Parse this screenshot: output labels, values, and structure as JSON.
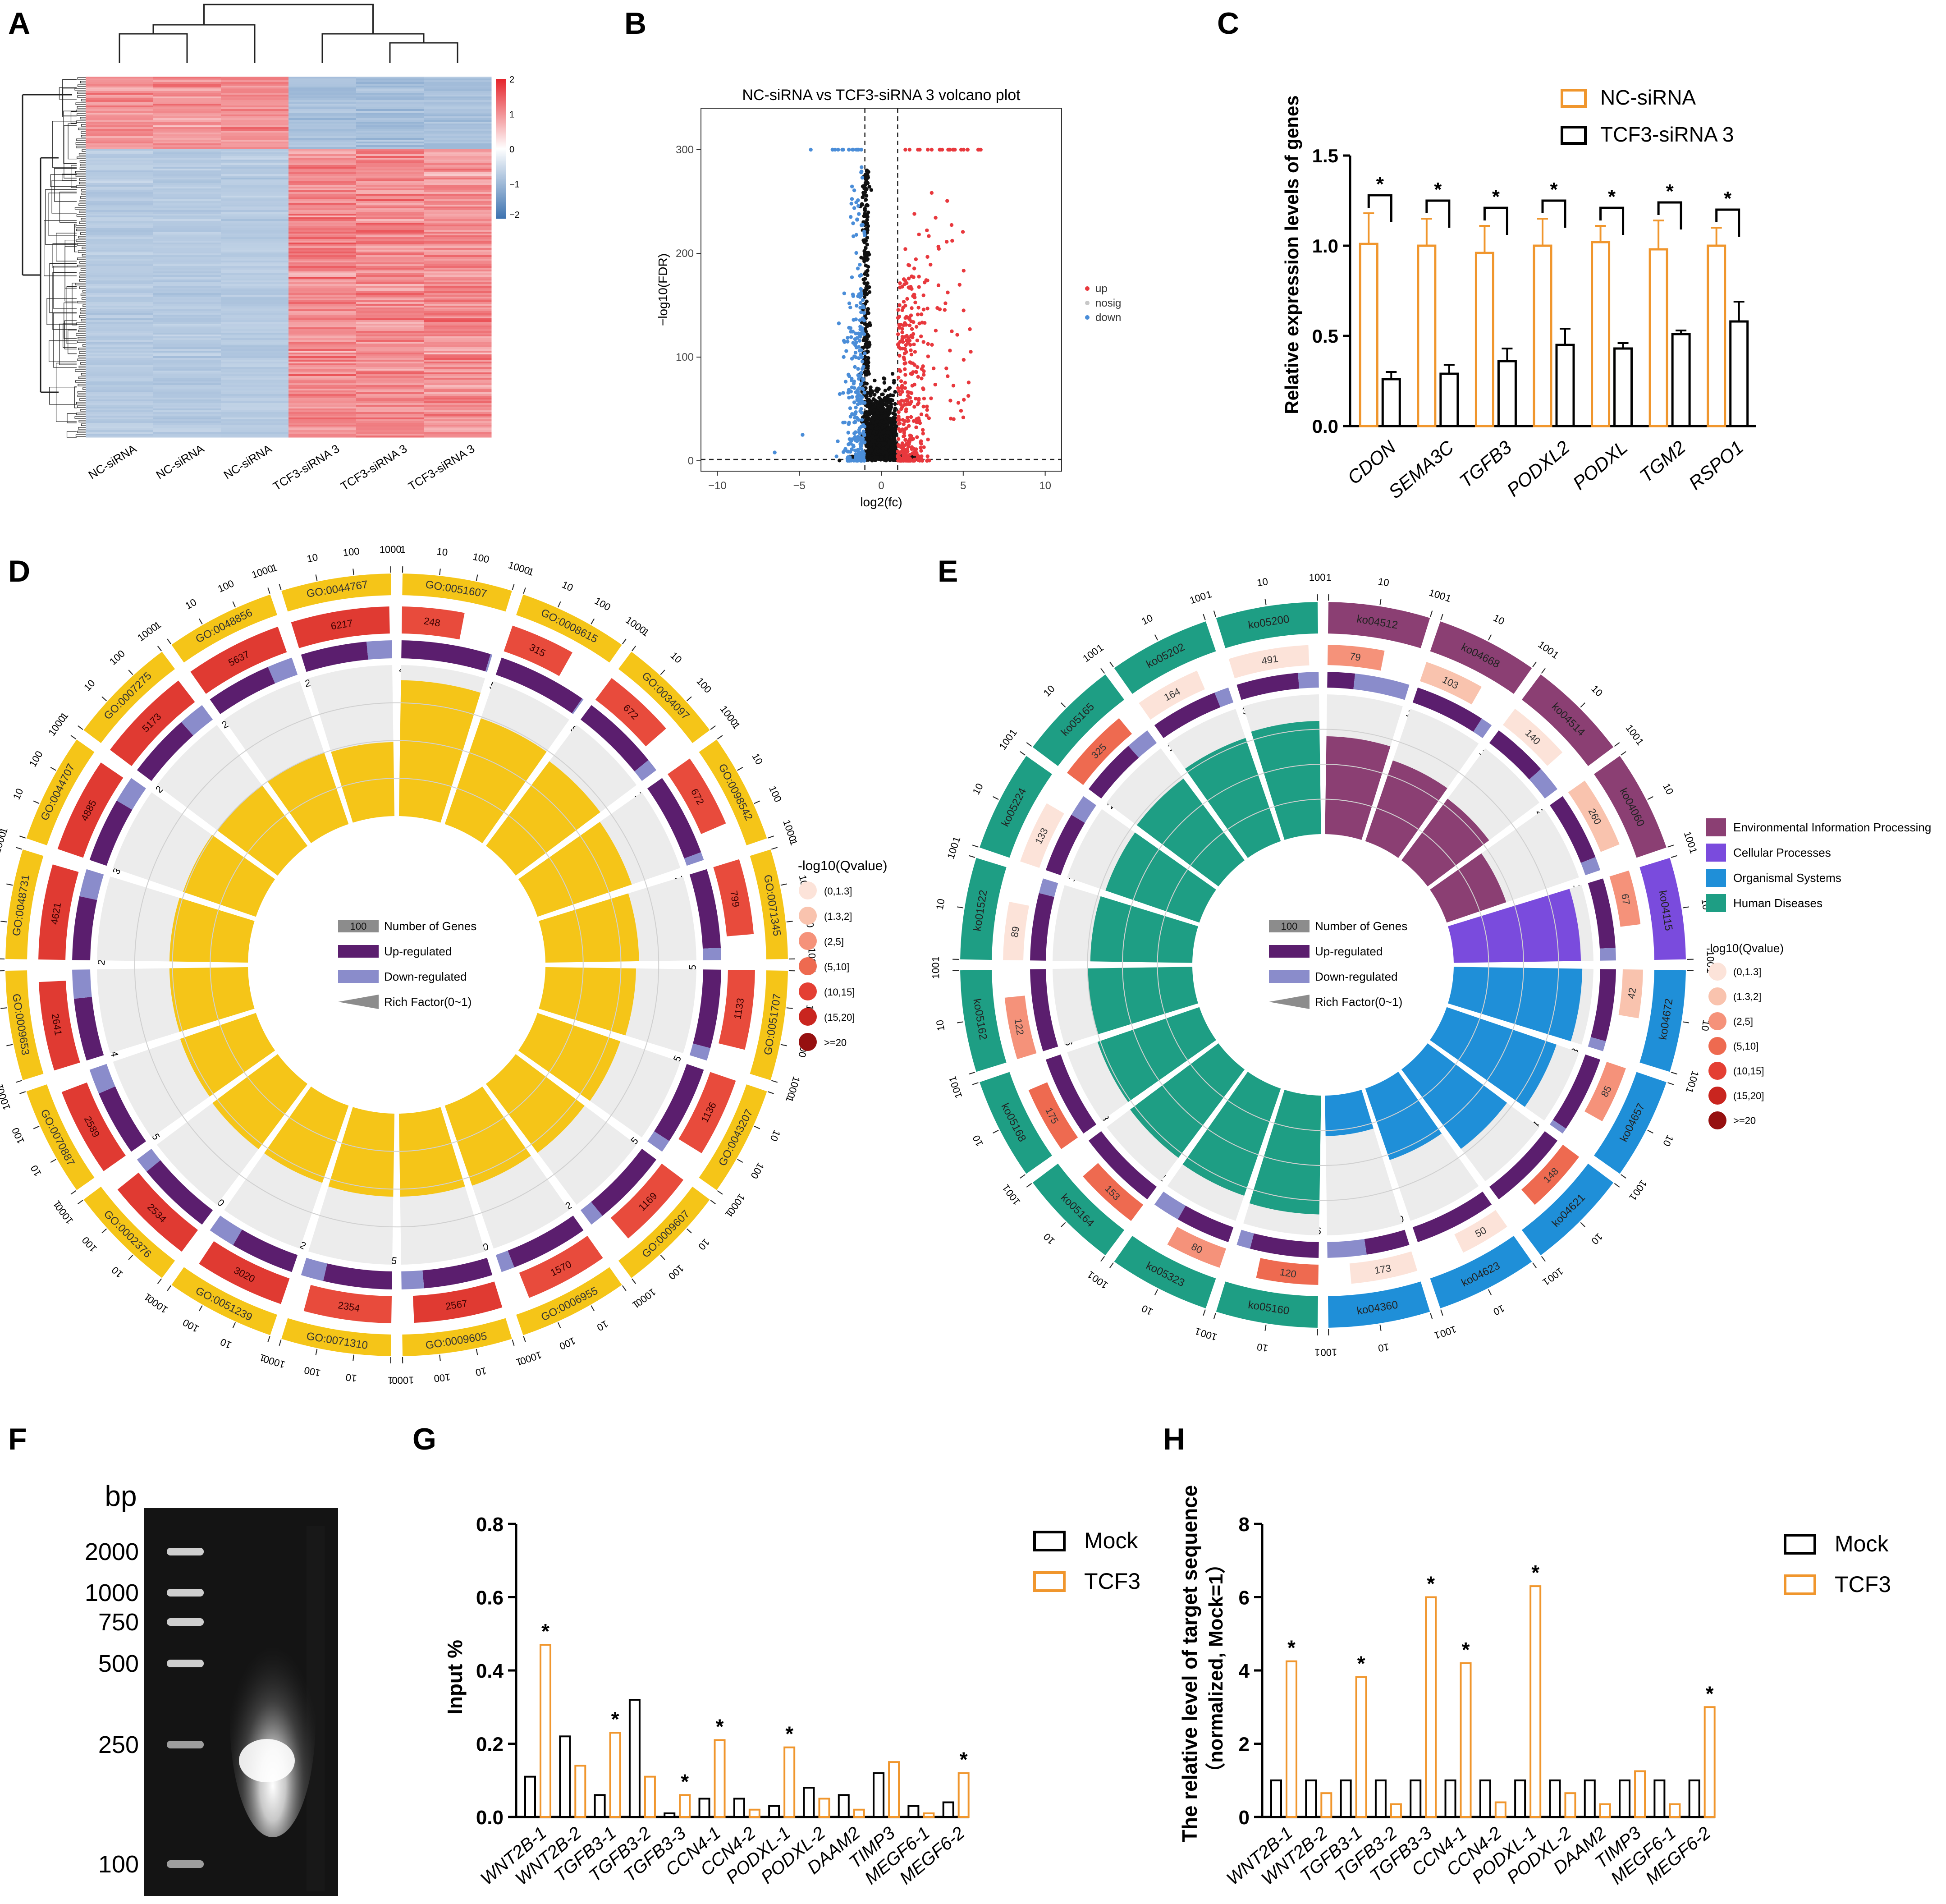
{
  "panel_letters": {
    "a": "A",
    "b": "B",
    "c": "C",
    "d": "D",
    "e": "E",
    "f": "F",
    "g": "G",
    "h": "H"
  },
  "colors": {
    "orange": "#F0962D",
    "red": "#E8383D",
    "blue": "#4A8DD8",
    "gold": "#F5C518",
    "purple": "#5B1E6E",
    "lavender": "#8A8CCB",
    "env": "#8B3F73",
    "cell": "#7A4BDD",
    "org": "#1F8FD8",
    "hum": "#1E9E84"
  },
  "chart_data": [
    {
      "id": "heatmap",
      "type": "heatmap",
      "columns": [
        "NC-siRNA",
        "NC-siRNA",
        "NC-siRNA",
        "TCF3-siRNA 3",
        "TCF3-siRNA 3",
        "TCF3-siRNA 3"
      ],
      "scale_ticks": [
        "2",
        "1",
        "0",
        "−1",
        "−2"
      ],
      "scale_range": [
        -2,
        2
      ]
    },
    {
      "id": "volcano",
      "type": "scatter",
      "title": "NC-siRNA vs TCF3-siRNA 3 volcano plot",
      "xlabel": "log2(fc)",
      "ylabel": "−log10(FDR)",
      "xlim": [
        -11,
        11
      ],
      "ylim": [
        -10,
        340
      ],
      "xticks": [
        -10,
        -5,
        0,
        5,
        10
      ],
      "yticks": [
        0,
        100,
        200,
        300
      ],
      "legend": [
        "up",
        "nosig",
        "down"
      ],
      "thresholds": {
        "x": [
          -1,
          1
        ],
        "y": 1.3
      }
    },
    {
      "id": "qpcr",
      "type": "bar",
      "categories": [
        "CDON",
        "SEMA3C",
        "TGFB3",
        "PODXL2",
        "PODXL",
        "TGM2",
        "RSPO1"
      ],
      "series": [
        {
          "name": "NC-siRNA",
          "values": [
            1.01,
            1.0,
            0.96,
            1.0,
            1.02,
            0.98,
            1.0
          ],
          "err": [
            0.17,
            0.15,
            0.15,
            0.15,
            0.09,
            0.16,
            0.1
          ]
        },
        {
          "name": "TCF3-siRNA 3",
          "values": [
            0.26,
            0.29,
            0.36,
            0.45,
            0.43,
            0.51,
            0.58
          ],
          "err": [
            0.04,
            0.05,
            0.07,
            0.09,
            0.03,
            0.02,
            0.11
          ]
        }
      ],
      "sig": [
        "*",
        "*",
        "*",
        "*",
        "*",
        "*",
        "*"
      ],
      "ylabel": "Relative expression levels of genes",
      "ylim": [
        0,
        1.5
      ],
      "yticks": [
        "0.0",
        "0.5",
        "1.0",
        "1.5"
      ]
    },
    {
      "id": "go_circos",
      "type": "pie",
      "labels": [
        "GO:0051607",
        "GO:0008615",
        "GO:0034097",
        "GO:0098542",
        "GO:0071345",
        "GO:0051707",
        "GO:0043207",
        "GO:0009607",
        "GO:0006955",
        "GO:0009605",
        "GO:0071310",
        "GO:0051239",
        "GO:0002376",
        "GO:0070887",
        "GO:0009653",
        "GO:0048731",
        "GO:0044707",
        "GO:0007275",
        "GO:0048856",
        "GO:0044767"
      ],
      "counts": [
        "248",
        "315",
        "672",
        "672",
        "799",
        "1133",
        "1136",
        "1169",
        "1570",
        "2567",
        "2354",
        "3020",
        "2534",
        "2589",
        "2641",
        "4621",
        "4885",
        "5173",
        "5637",
        "6217"
      ],
      "up": [
        "49",
        "56",
        "93",
        "72",
        "78",
        "105",
        "105",
        "105",
        "122",
        "170",
        "145",
        "172",
        "170",
        "165",
        "154",
        "230",
        "301",
        "252",
        "271",
        "290"
      ],
      "down": [
        "1",
        "1",
        "15",
        "7",
        "12",
        "17",
        "17",
        "19",
        "21",
        "55",
        "48",
        "73",
        "34",
        "63",
        "71",
        "100",
        "124",
        "103",
        "104",
        "110"
      ],
      "rich": [
        0.9,
        0.74,
        0.7,
        0.66,
        0.62,
        0.6,
        0.58,
        0.57,
        0.56,
        0.55,
        0.55,
        0.54,
        0.54,
        0.53,
        0.52,
        0.52,
        0.51,
        0.5,
        0.5,
        0.49
      ],
      "legend_title": "-log10(Qvalue)",
      "legend": [
        "(0,1.3]",
        "(1.3,2]",
        "(2,5]",
        "(5,10]",
        "(10,15]",
        "(15,20]",
        ">=20"
      ],
      "key": {
        "count_box": "100",
        "count": "Number of Genes",
        "up": "Up-regulated",
        "down": "Down-regulated",
        "rich": "Rich Factor(0~1)"
      },
      "scale_ticks": [
        "1",
        "10",
        "100",
        "1000"
      ]
    },
    {
      "id": "kegg_circos",
      "type": "pie",
      "labels": [
        "ko04512",
        "ko04668",
        "ko04514",
        "ko04060",
        "ko04115",
        "ko04672",
        "ko04657",
        "ko04621",
        "ko04623",
        "ko04360",
        "ko05160",
        "ko05323",
        "ko05164",
        "ko05168",
        "ko05162",
        "ko01522",
        "ko05224",
        "ko05165",
        "ko05202",
        "ko05200"
      ],
      "category": [
        "env",
        "env",
        "env",
        "env",
        "cell",
        "org",
        "org",
        "org",
        "org",
        "org",
        "hum",
        "hum",
        "hum",
        "hum",
        "hum",
        "hum",
        "hum",
        "hum",
        "hum",
        "hum"
      ],
      "counts": [
        "79",
        "103",
        "140",
        "260",
        "67",
        "42",
        "85",
        "148",
        "50",
        "173",
        "120",
        "80",
        "153",
        "175",
        "122",
        "89",
        "133",
        "325",
        "164",
        "491"
      ],
      "up": [
        "4",
        "12",
        "11",
        "20",
        "11",
        "7",
        "13",
        "24",
        "8",
        "10",
        "15",
        "8",
        "21",
        "23",
        "16",
        "9",
        "11",
        "24",
        "14",
        "30"
      ],
      "down": [
        "8",
        "2",
        "5",
        "4",
        "2",
        "1",
        "1",
        "0",
        "0",
        "9",
        "3",
        "4",
        "0",
        "0",
        "0",
        "2",
        "4",
        "10",
        "3",
        "10"
      ],
      "rich": [
        0.7,
        0.61,
        0.55,
        0.45,
        0.91,
        0.92,
        0.83,
        0.71,
        0.54,
        0.29,
        0.85,
        0.81,
        0.79,
        0.77,
        0.75,
        0.73,
        0.71,
        0.73,
        0.78,
        0.81
      ],
      "legend": [
        "Environmental Information Processing",
        "Cellular Processes",
        "Organismal Systems",
        "Human Diseases"
      ],
      "q_title": "-log10(Qvalue)",
      "q_legend": [
        "(0,1.3]",
        "(1.3,2]",
        "(2,5]",
        "(5,10]",
        "(10,15]",
        "(15,20]",
        ">=20"
      ],
      "key": {
        "count_box": "100",
        "count": "Number of Genes",
        "up": "Up-regulated",
        "down": "Down-regulated",
        "rich": "Rich Factor(0~1)"
      },
      "scale_ticks": [
        "1",
        "10",
        "100"
      ]
    },
    {
      "id": "gel",
      "type": "other",
      "unit_label": "bp",
      "markers": [
        "2000",
        "1000",
        "750",
        "500",
        "250",
        "100"
      ]
    },
    {
      "id": "chip_input",
      "type": "bar",
      "categories": [
        "WNT2B-1",
        "WNT2B-2",
        "TGFB3-1",
        "TGFB3-2",
        "TGFB3-3",
        "CCN4-1",
        "CCN4-2",
        "PODXL-1",
        "PODXL-2",
        "DAAM2",
        "TIMP3",
        "MEGF6-1",
        "MEGF6-2"
      ],
      "series": [
        {
          "name": "Mock",
          "values": [
            0.11,
            0.22,
            0.06,
            0.32,
            0.01,
            0.05,
            0.05,
            0.03,
            0.08,
            0.06,
            0.12,
            0.03,
            0.04
          ]
        },
        {
          "name": "TCF3",
          "values": [
            0.47,
            0.14,
            0.23,
            0.11,
            0.06,
            0.21,
            0.02,
            0.19,
            0.05,
            0.02,
            0.15,
            0.01,
            0.12
          ]
        }
      ],
      "sig": [
        "*",
        "",
        "*",
        "",
        "*",
        "*",
        "",
        "*",
        "",
        "",
        "",
        "",
        "*"
      ],
      "ylabel": "Input %",
      "ylim": [
        0,
        0.8
      ],
      "yticks": [
        "0.0",
        "0.2",
        "0.4",
        "0.6",
        "0.8"
      ]
    },
    {
      "id": "chip_relative",
      "type": "bar",
      "categories": [
        "WNT2B-1",
        "WNT2B-2",
        "TGFB3-1",
        "TGFB3-2",
        "TGFB3-3",
        "CCN4-1",
        "CCN4-2",
        "PODXL-1",
        "PODXL-2",
        "DAAM2",
        "TIMP3",
        "MEGF6-1",
        "MEGF6-2"
      ],
      "series": [
        {
          "name": "Mock",
          "values": [
            1,
            1,
            1,
            1,
            1,
            1,
            1,
            1,
            1,
            1,
            1,
            1,
            1
          ]
        },
        {
          "name": "TCF3",
          "values": [
            4.25,
            0.65,
            3.82,
            0.35,
            6.0,
            4.2,
            0.4,
            6.3,
            0.65,
            0.35,
            1.25,
            0.35,
            3.0
          ]
        }
      ],
      "sig": [
        "*",
        "",
        "*",
        "",
        "*",
        "*",
        "",
        "*",
        "",
        "",
        "",
        "",
        "*"
      ],
      "ylabel": "The relative level of target sequence",
      "ylabel2": "（normalized, Mock=1）",
      "ylim": [
        0,
        8
      ],
      "yticks": [
        "0",
        "2",
        "4",
        "6",
        "8"
      ]
    }
  ]
}
